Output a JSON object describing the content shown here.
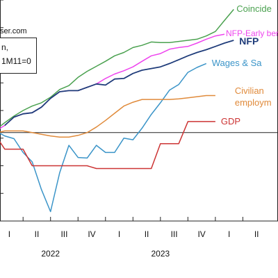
{
  "watermark": "ser.com",
  "legend": {
    "line1": "n,",
    "line2": "1M11=0"
  },
  "chart_data": {
    "type": "line",
    "title": "",
    "xlabel": "",
    "ylabel": "",
    "grid": false,
    "x": [
      2021.75,
      2021.833,
      2021.917,
      2022.0,
      2022.083,
      2022.167,
      2022.25,
      2022.333,
      2022.417,
      2022.5,
      2022.583,
      2022.667,
      2022.75,
      2022.833,
      2022.917,
      2023.0,
      2023.083,
      2023.167,
      2023.25,
      2023.333,
      2023.417,
      2023.5,
      2023.583,
      2023.667,
      2023.75,
      2023.833,
      2023.917,
      2024.0
    ],
    "x_ticks": [
      {
        "x": 2021.875,
        "label": "I"
      },
      {
        "x": 2022.125,
        "label": "II"
      },
      {
        "x": 2022.375,
        "label": "III"
      },
      {
        "x": 2022.625,
        "label": "IV"
      },
      {
        "x": 2022.875,
        "label": "I"
      },
      {
        "x": 2023.125,
        "label": "II"
      },
      {
        "x": 2023.375,
        "label": "III"
      },
      {
        "x": 2023.625,
        "label": "IV"
      },
      {
        "x": 2023.875,
        "label": "I"
      },
      {
        "x": 2024.125,
        "label": "II"
      }
    ],
    "year_labels": [
      {
        "x": 2022.25,
        "label": "2022"
      },
      {
        "x": 2023.25,
        "label": "2023"
      }
    ],
    "series": [
      {
        "name": "Coincide",
        "color": "#4aa14f",
        "values": [
          0.5,
          1.8,
          3.0,
          4.0,
          4.8,
          5.4,
          6.4,
          7.8,
          8.5,
          10.0,
          11.1,
          12.0,
          12.9,
          13.9,
          14.5,
          15.4,
          15.8,
          16.4,
          16.3,
          16.3,
          16.5,
          16.7,
          16.9,
          17.5,
          18.3,
          20.3,
          22.3,
          null
        ]
      },
      {
        "name": "NFP-Early ber",
        "color": "#ee44ee",
        "values": [
          0.3,
          1.3,
          2.8,
          3.4,
          3.6,
          4.6,
          6.2,
          7.4,
          7.6,
          7.6,
          8.2,
          8.8,
          9.8,
          10.6,
          11.2,
          11.9,
          12.9,
          13.9,
          14.3,
          15.1,
          15.4,
          15.6,
          16.2,
          16.9,
          17.5,
          17.8,
          null,
          null
        ]
      },
      {
        "name": "NFP",
        "color": "#1f3c7a",
        "values": [
          null,
          1.3,
          2.8,
          3.4,
          3.6,
          4.6,
          6.2,
          7.4,
          7.6,
          7.6,
          8.2,
          8.8,
          8.6,
          9.7,
          9.8,
          10.7,
          11.3,
          11.6,
          11.9,
          12.5,
          13.2,
          13.9,
          14.5,
          15.0,
          15.6,
          16.2,
          16.7,
          null
        ]
      },
      {
        "name": "Wages & Sa",
        "color": "#3a94c8",
        "values": [
          0.3,
          -0.6,
          -1.1,
          -3.6,
          -5.3,
          -10.3,
          -14.3,
          -7.3,
          -2.3,
          -4.5,
          -4.6,
          -2.3,
          -3.6,
          -3.6,
          -1.0,
          -1.3,
          0.8,
          3.3,
          5.4,
          7.7,
          8.7,
          10.9,
          11.8,
          12.5,
          null,
          null,
          null,
          null
        ]
      },
      {
        "name": "Civilian employm",
        "color": "#e08a3a",
        "values": [
          -0.1,
          0.3,
          0.3,
          0.3,
          0.0,
          -0.3,
          -0.6,
          -0.8,
          -0.8,
          -0.5,
          0.0,
          1.0,
          2.2,
          3.5,
          4.8,
          5.5,
          6.0,
          6.0,
          6.0,
          6.0,
          6.1,
          6.3,
          6.5,
          6.7,
          6.7,
          null,
          null,
          null
        ]
      },
      {
        "name": "GDP",
        "color": "#cc3333",
        "values": [
          -0.5,
          -3.0,
          -3.0,
          -3.0,
          -6.0,
          -6.0,
          -6.0,
          -6.0,
          -6.0,
          -6.0,
          -6.0,
          -6.5,
          -6.5,
          -6.5,
          -6.5,
          -6.5,
          -6.5,
          -6.5,
          -2.0,
          -2.0,
          -2.0,
          2.0,
          2.0,
          2.0,
          2.0,
          null,
          null,
          null
        ]
      }
    ],
    "ylim": [
      -16,
      24
    ],
    "xlim": [
      2021.79,
      2024.32
    ],
    "zero_line": true
  }
}
